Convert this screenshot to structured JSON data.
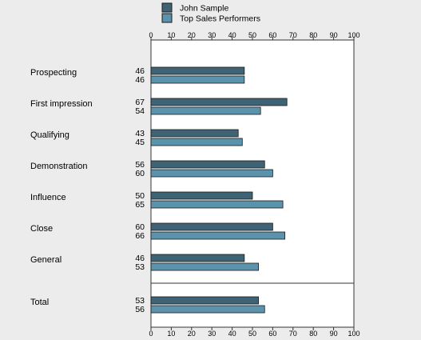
{
  "chart_data": {
    "type": "bar",
    "orientation": "horizontal",
    "categories": [
      "Prospecting",
      "First impression",
      "Qualifying",
      "Demonstration",
      "Influence",
      "Close",
      "General",
      "Total"
    ],
    "series": [
      {
        "name": "John Sample",
        "values": [
          46,
          67,
          43,
          56,
          50,
          60,
          46,
          53
        ]
      },
      {
        "name": "Top Sales Performers",
        "values": [
          46,
          54,
          45,
          60,
          65,
          66,
          53,
          56
        ]
      }
    ],
    "xlim": [
      0,
      100
    ],
    "xticks": [
      0,
      10,
      20,
      30,
      40,
      50,
      60,
      70,
      80,
      90,
      100
    ],
    "xaxis_position": "top and bottom",
    "grid": false,
    "legend_position": "top",
    "separator_before": "Total",
    "colors": {
      "John Sample": "#3d6375",
      "Top Sales Performers": "#5b93ad",
      "background": "#ececec",
      "plot_background": "#ffffff"
    }
  }
}
